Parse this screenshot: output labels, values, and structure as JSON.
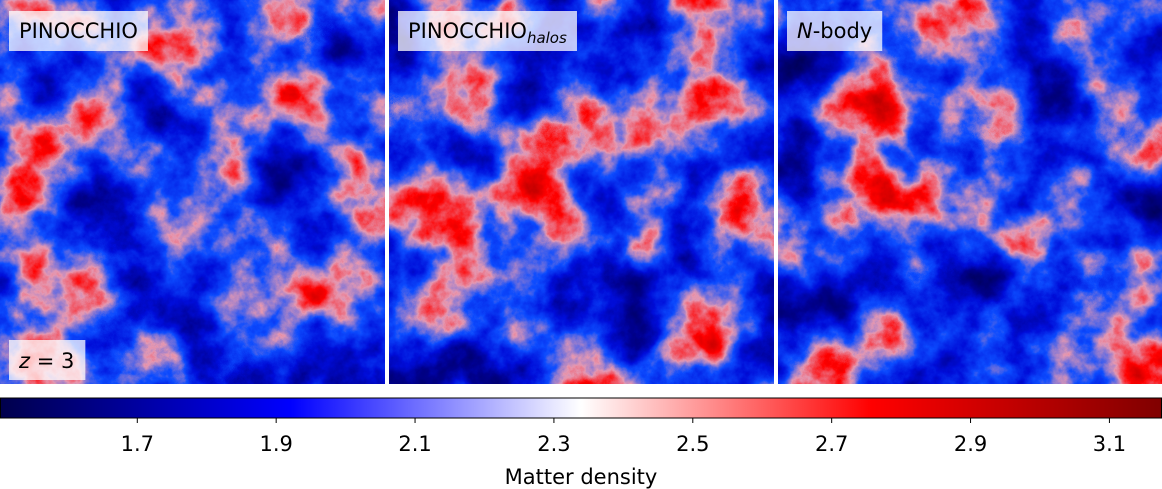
{
  "chart_data": {
    "type": "density-map",
    "panels": [
      {
        "title": {
          "text": "PINOCCHIO"
        }
      },
      {
        "title": {
          "text": "PINOCCHIO",
          "subscript": "halos"
        }
      },
      {
        "title": {
          "italic": "N",
          "text": "-body"
        }
      }
    ],
    "annotation": {
      "italic": "z",
      "text": " = 3"
    },
    "colorbar": {
      "label": "Matter density",
      "colormap": "seismic",
      "lim": [
        1.503,
        3.175
      ],
      "ticks": [
        1.7,
        1.9,
        2.1,
        2.3,
        2.5,
        2.7,
        2.9,
        3.1
      ]
    }
  }
}
